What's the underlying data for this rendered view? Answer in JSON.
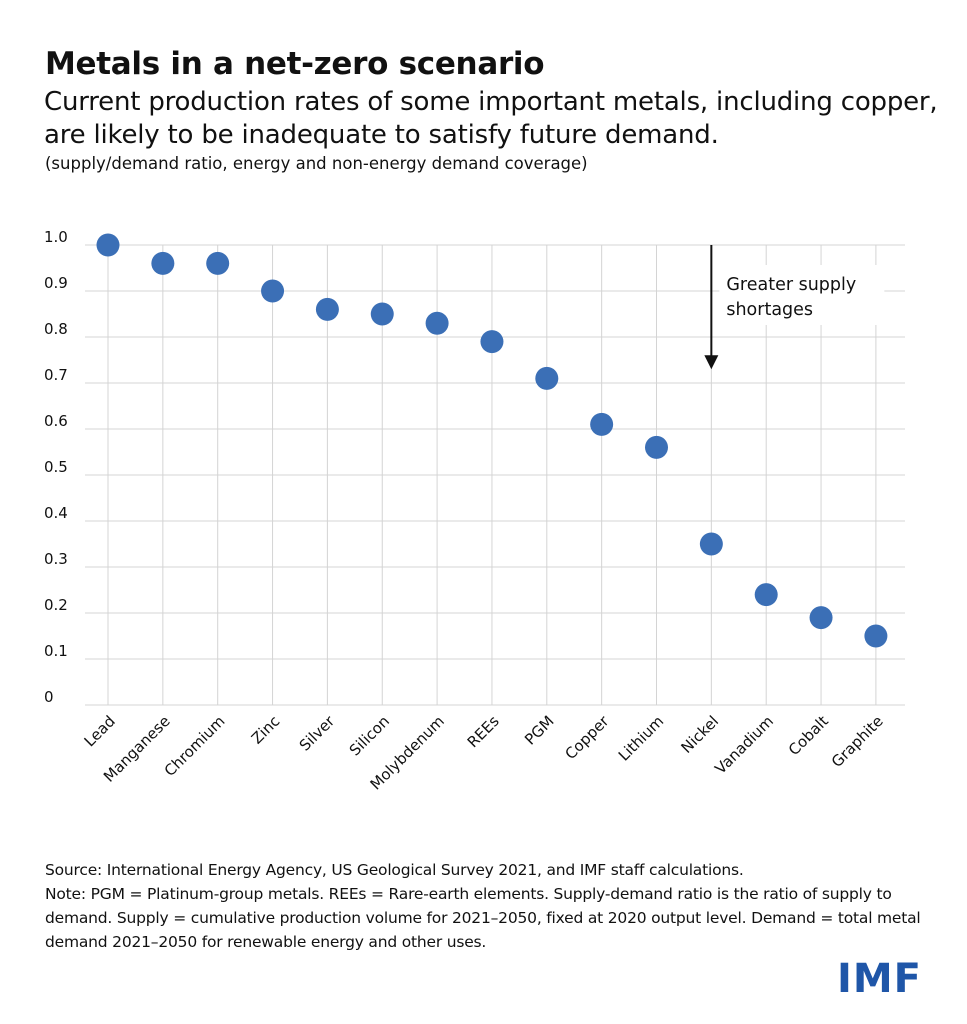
{
  "title": "Metals in a net-zero scenario",
  "subtitle": "Current production rates of some important metals, including copper, are likely to be inadequate to satisfy future demand.",
  "unit_note": "(supply/demand ratio, energy and non-energy demand coverage)",
  "chart_data": {
    "type": "scatter",
    "title": "Metals in a net-zero scenario",
    "ylabel": "supply/demand ratio",
    "xlabel": "",
    "ylim": [
      0,
      1.0
    ],
    "y_ticks": [
      {
        "value": 0,
        "label": "0"
      },
      {
        "value": 0.1,
        "label": "0.1"
      },
      {
        "value": 0.2,
        "label": "0.2"
      },
      {
        "value": 0.3,
        "label": "0.3"
      },
      {
        "value": 0.4,
        "label": "0.4"
      },
      {
        "value": 0.5,
        "label": "0.5"
      },
      {
        "value": 0.6,
        "label": "0.6"
      },
      {
        "value": 0.7,
        "label": "0.7"
      },
      {
        "value": 0.8,
        "label": "0.8"
      },
      {
        "value": 0.9,
        "label": "0.9"
      },
      {
        "value": 1.0,
        "label": "1.0"
      }
    ],
    "categories": [
      "Lead",
      "Manganese",
      "Chromium",
      "Zinc",
      "Silver",
      "Silicon",
      "Molybdenum",
      "REEs",
      "PGM",
      "Copper",
      "Lithium",
      "Nickel",
      "Vanadium",
      "Cobalt",
      "Graphite"
    ],
    "values": [
      1.0,
      0.96,
      0.96,
      0.9,
      0.86,
      0.85,
      0.83,
      0.79,
      0.71,
      0.61,
      0.56,
      0.35,
      0.24,
      0.19,
      0.15
    ],
    "grid": true,
    "marker_color": "#3b6fb6",
    "annotation": {
      "lines": [
        "Greater supply",
        "shortages"
      ],
      "category": "Nickel",
      "arrow_from": 1.0,
      "arrow_to": 0.73
    }
  },
  "footer": {
    "source": "Source: International Energy Agency, US Geological Survey 2021, and IMF staff calculations.",
    "note": "Note: PGM = Platinum-group metals. REEs = Rare-earth elements. Supply-demand ratio is the ratio of supply to demand. Supply = cumulative production volume for 2021–2050, fixed at 2020 output level. Demand = total metal demand 2021–2050 for renewable energy and other uses."
  },
  "logo": "IMF"
}
